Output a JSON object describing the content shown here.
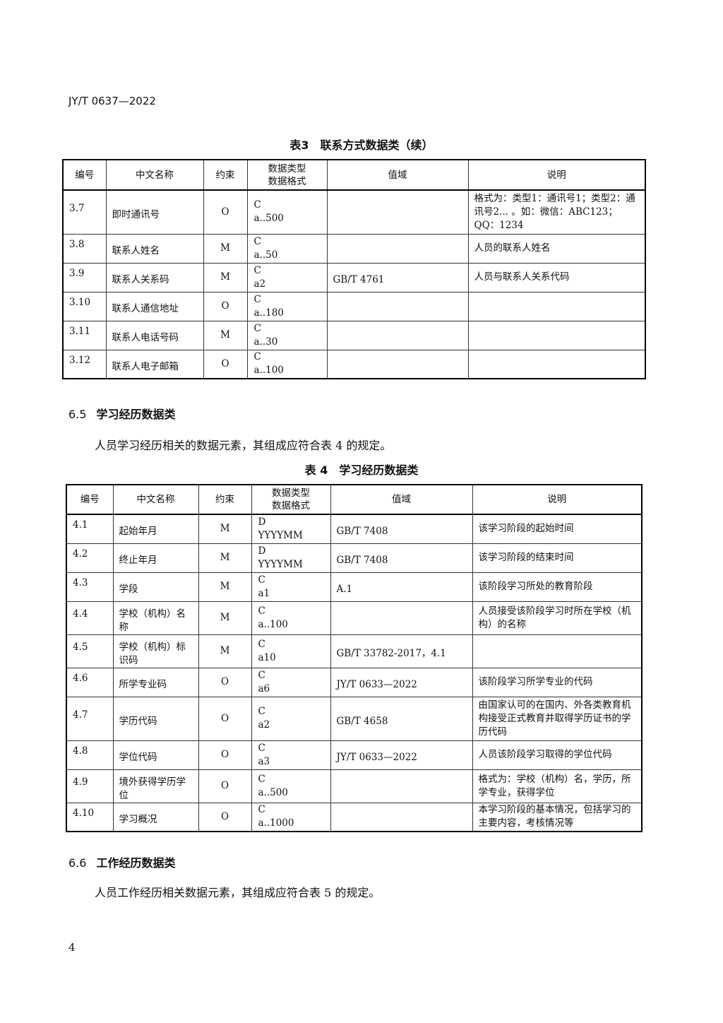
{
  "header": "JY/T 0637—2022",
  "table3": {
    "caption": "表3　联系方式数据类（续）",
    "columns": [
      "编号",
      "中文名称",
      "约束",
      "数据类型\n数据格式",
      "值域",
      "说明"
    ],
    "rows": [
      [
        "3.7",
        "即时通讯号",
        "O",
        "C\na..500",
        "",
        "格式为：类型1：通讯号1；类型2：通讯号2... 。如：微信：ABC123；QQ：1234"
      ],
      [
        "3.8",
        "联系人姓名",
        "M",
        "C\na..50",
        "",
        "人员的联系人姓名"
      ],
      [
        "3.9",
        "联系人关系码",
        "M",
        "C\na2",
        "GB/T 4761",
        "人员与联系人关系代码"
      ],
      [
        "3.10",
        "联系人通信地址",
        "O",
        "C\na..180",
        "",
        ""
      ],
      [
        "3.11",
        "联系人电话号码",
        "M",
        "C\na..30",
        "",
        ""
      ],
      [
        "3.12",
        "联系人电子邮箱",
        "O",
        "C\na..100",
        "",
        ""
      ]
    ]
  },
  "section65": {
    "number": "6.5",
    "title": "学习经历数据类",
    "text": "人员学习经历相关的数据元素，其组成应符合表 4 的规定。"
  },
  "table4": {
    "caption": "表 4　学习经历数据类",
    "columns": [
      "编号",
      "中文名称",
      "约束",
      "数据类型\n数据格式",
      "值域",
      "说明"
    ],
    "rows": [
      [
        "4.1",
        "起始年月",
        "M",
        "D\nYYYYMM",
        "GB/T 7408",
        "该学习阶段的起始时间"
      ],
      [
        "4.2",
        "终止年月",
        "M",
        "D\nYYYYMM",
        "GB/T 7408",
        "该学习阶段的结束时间"
      ],
      [
        "4.3",
        "学段",
        "M",
        "C\na1",
        "A.1",
        "该阶段学习所处的教育阶段"
      ],
      [
        "4.4",
        "学校（机构）名称",
        "M",
        "C\na..100",
        "",
        "人员接受该阶段学习时所在学校（机构）的名称"
      ],
      [
        "4.5",
        "学校（机构）标识码",
        "M",
        "C\na10",
        "GB/T 33782-2017，4.1",
        ""
      ],
      [
        "4.6",
        "所学专业码",
        "O",
        "C\na6",
        "JY/T 0633—2022",
        "该阶段学习所学专业的代码"
      ],
      [
        "4.7",
        "学历代码",
        "O",
        "C\na2",
        "GB/T 4658",
        "由国家认可的在国内、外各类教育机构接受正式教育并取得学历证书的学历代码"
      ],
      [
        "4.8",
        "学位代码",
        "O",
        "C\na3",
        "JY/T 0633—2022",
        "人员该阶段学习取得的学位代码"
      ],
      [
        "4.9",
        "境外获得学历学位",
        "O",
        "C\na..500",
        "",
        "格式为：学校（机构）名，学历，所学专业，获得学位"
      ],
      [
        "4.10",
        "学习概况",
        "O",
        "C\na..1000",
        "",
        "本学习阶段的基本情况，包括学习的主要内容，考核情况等"
      ]
    ]
  },
  "section66": {
    "number": "6.6",
    "title": "工作经历数据类",
    "text": "人员工作经历相关数据元素，其组成应符合表 5 的规定。"
  },
  "page_number": "4"
}
